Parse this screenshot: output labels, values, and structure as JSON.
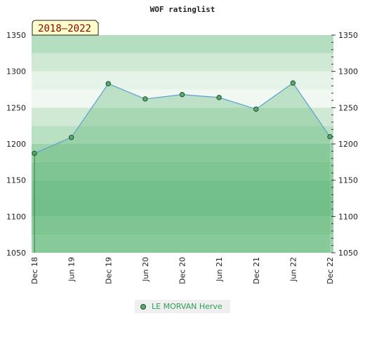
{
  "chart_data": {
    "type": "area",
    "title": "WOF ratinglist",
    "badge": "2018–2022",
    "x": [
      "Dec 18",
      "Jun 19",
      "Dec 19",
      "Jun 20",
      "Dec 20",
      "Jun 21",
      "Dec 21",
      "Jun 22",
      "Dec 22"
    ],
    "series": [
      {
        "name": "LE MORVAN Herve",
        "values": [
          1187,
          1209,
          1283,
          1262,
          1268,
          1264,
          1248,
          1284,
          1210
        ]
      }
    ],
    "ylim": [
      1050,
      1350
    ],
    "yticks": [
      1050,
      1100,
      1150,
      1200,
      1250,
      1300,
      1350
    ],
    "grid": true,
    "legend": "bottom-center",
    "colors": {
      "line": "#5b9fd0",
      "area": "#5fb878",
      "marker_fill": "#5aa96e",
      "marker_stroke": "#1c4f2a",
      "badge_bg": "#ffffcc",
      "badge_text": "#8b0000",
      "legend_text": "#2f9e55"
    }
  }
}
